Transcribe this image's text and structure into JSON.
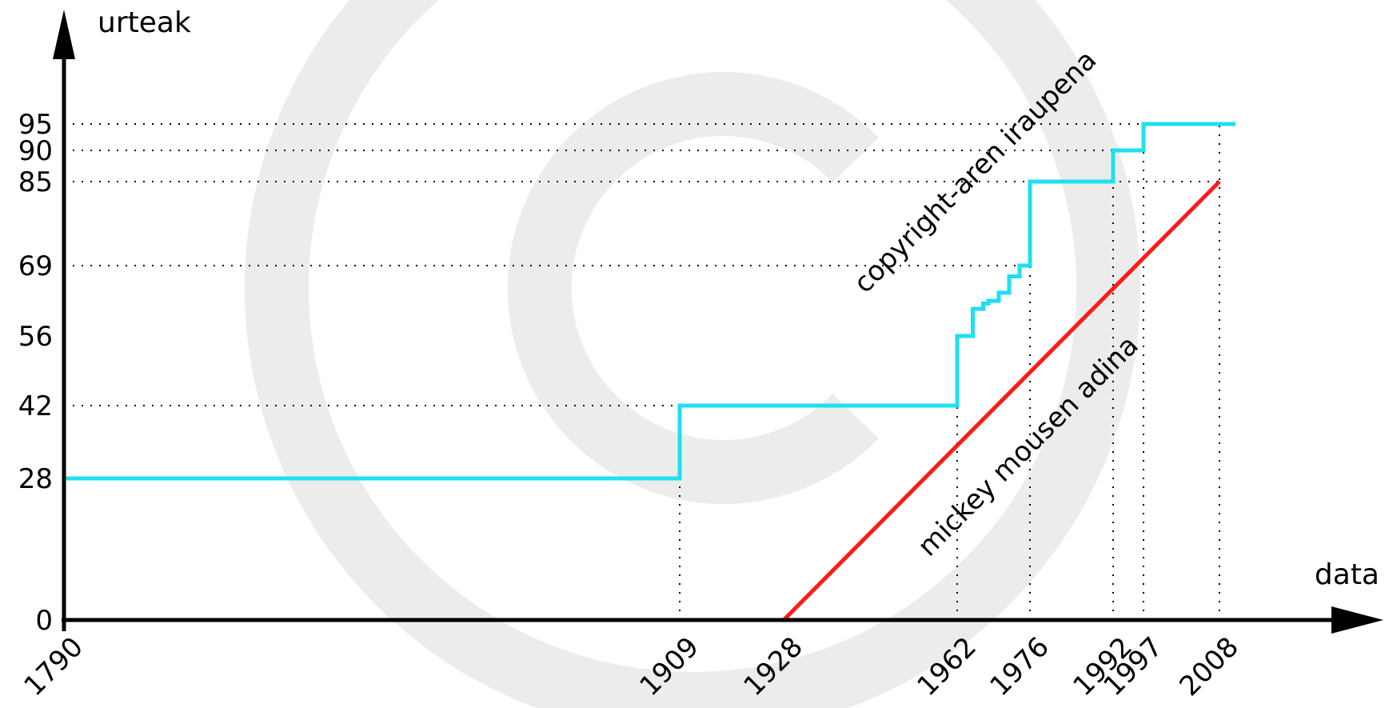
{
  "chart_data": {
    "type": "line",
    "title": "",
    "xlabel": "data",
    "ylabel": "urteak",
    "xlim": [
      1790,
      2008
    ],
    "ylim": [
      0,
      95
    ],
    "x_ticks": [
      1790,
      1909,
      1928,
      1962,
      1976,
      1992,
      1997,
      2008
    ],
    "y_ticks": [
      0,
      28,
      42,
      56,
      69,
      85,
      90,
      95
    ],
    "grid": "dotted reference lines at tick values",
    "series": [
      {
        "name": "copyright-aren iraupena",
        "style": "step",
        "color": "#1ee0f0",
        "points": [
          [
            1790,
            0
          ],
          [
            1790,
            28
          ],
          [
            1909,
            28
          ],
          [
            1909,
            42
          ],
          [
            1962,
            42
          ],
          [
            1962,
            56
          ],
          [
            1965,
            56
          ],
          [
            1965,
            61
          ],
          [
            1967,
            61
          ],
          [
            1967,
            62
          ],
          [
            1968,
            62
          ],
          [
            1968,
            62.5
          ],
          [
            1970,
            62.5
          ],
          [
            1970,
            64
          ],
          [
            1972,
            64
          ],
          [
            1972,
            67
          ],
          [
            1974,
            67
          ],
          [
            1974,
            69
          ],
          [
            1976,
            69
          ],
          [
            1976,
            85
          ],
          [
            1992,
            85
          ],
          [
            1992,
            90
          ],
          [
            1997,
            90
          ],
          [
            1997,
            95
          ],
          [
            2011,
            95
          ]
        ]
      },
      {
        "name": "mickey mousen adina",
        "style": "line",
        "color": "#ff1a1a",
        "points": [
          [
            1928,
            0
          ],
          [
            2008,
            85
          ]
        ]
      }
    ],
    "reference_lines": {
      "horizontal": [
        {
          "y": 95,
          "to_x": 2008
        },
        {
          "y": 90,
          "to_x": 1997
        },
        {
          "y": 85,
          "to_x": 2008
        },
        {
          "y": 69,
          "to_x": 1976
        },
        {
          "y": 42,
          "to_x": 1909
        }
      ],
      "vertical": [
        {
          "x": 1909,
          "to_y": 28
        },
        {
          "x": 1962,
          "to_y": 42
        },
        {
          "x": 1976,
          "to_y": 85
        },
        {
          "x": 1992,
          "to_y": 85
        },
        {
          "x": 1997,
          "to_y": 90
        },
        {
          "x": 2008,
          "to_y": 95
        }
      ]
    },
    "annotations": [
      "copyright-aren iraupena",
      "mickey mousen adina"
    ]
  },
  "colors": {
    "axis": "#000000",
    "copyright_line": "#1ee0f0",
    "mickey_line": "#ff1a1a",
    "watermark": "#ececec",
    "grid": "#000000"
  }
}
